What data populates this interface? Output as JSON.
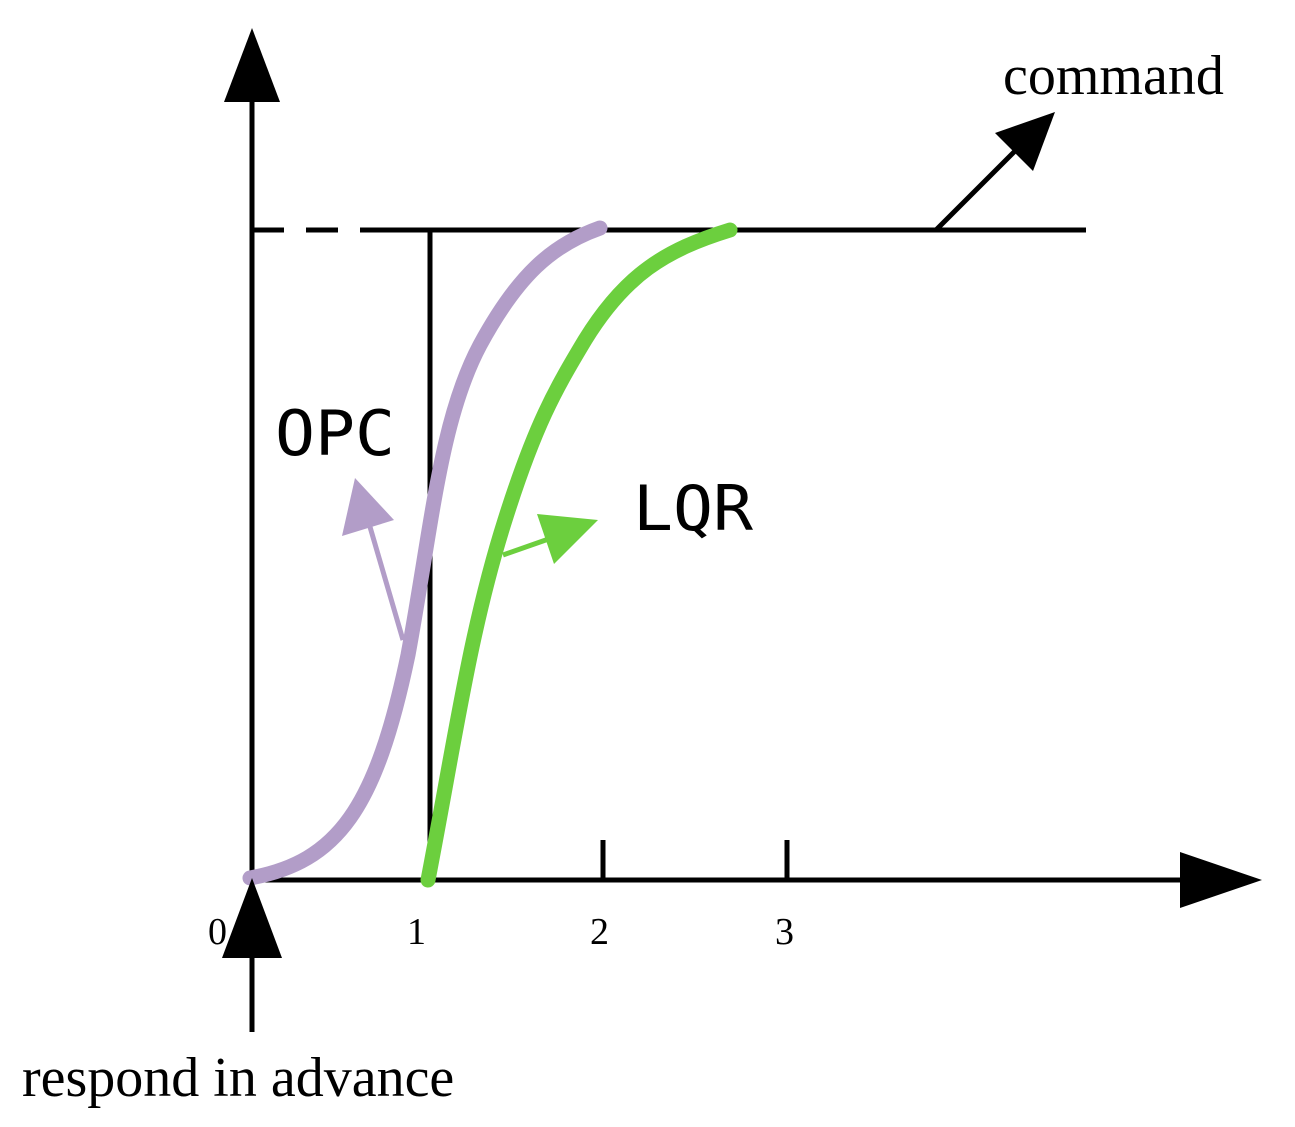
{
  "labels": {
    "command": "command",
    "respond_in_advance": "respond in advance",
    "opc": "OPC",
    "lqr": "LQR"
  },
  "x_ticks": [
    "0",
    "1",
    "2",
    "3"
  ],
  "colors": {
    "axis": "#000000",
    "opc": "#b29dc8",
    "lqr": "#6ccf3e",
    "background": "#ffffff"
  },
  "icons": {
    "axis_arrows": "triangle-arrowhead",
    "pointer_arrows": "arrow"
  }
}
